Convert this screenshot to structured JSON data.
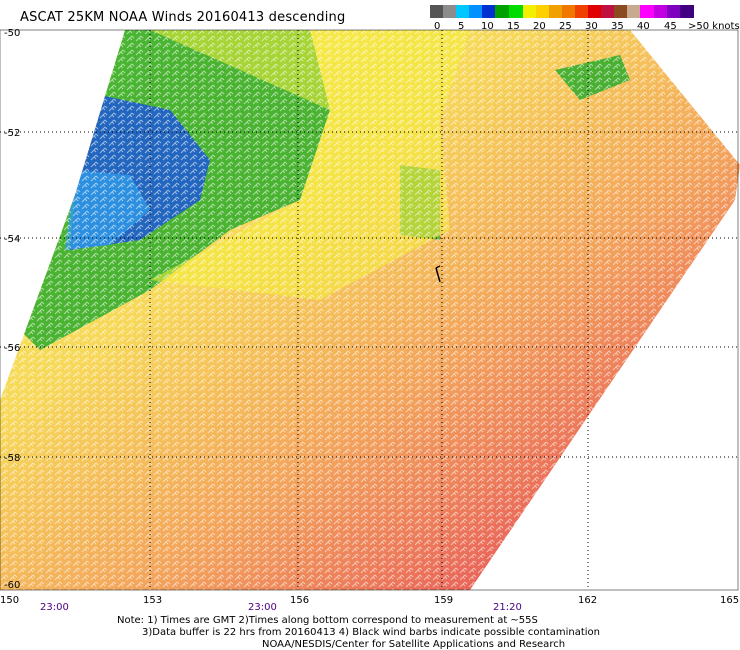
{
  "title": "ASCAT 25KM NOAA Winds 20160413 descending",
  "legend": {
    "swatches": [
      "#555555",
      "#8c8c8c",
      "#00c8ff",
      "#0090ff",
      "#0030d0",
      "#00a000",
      "#00dc00",
      "#f0f000",
      "#ffd000",
      "#f0a000",
      "#f07800",
      "#f04000",
      "#e00000",
      "#c01040",
      "#8c4a20",
      "#c8aa90",
      "#ff00ff",
      "#c000e0",
      "#8000c0",
      "#400080"
    ],
    "labels": [
      "0",
      "5",
      "10",
      "15",
      "20",
      "25",
      "30",
      "35",
      "40",
      "45",
      ">50 knots"
    ]
  },
  "axes": {
    "lon_ticks": [
      "150",
      "153",
      "156",
      "159",
      "162",
      "165"
    ],
    "lat_ticks": [
      "-50",
      "-52",
      "-54",
      "-56",
      "-58",
      "-60"
    ],
    "time_labels": [
      "23:00",
      "23:00",
      "21:20"
    ]
  },
  "notes": [
    "Note: 1) Times are GMT 2)Times along bottom correspond to measurement at ~55S",
    "3)Data buffer is 22 hrs from 20160413 4) Black wind barbs indicate possible contamination",
    "NOAA/NESDIS/Center for Satellite Applications and Research"
  ]
}
